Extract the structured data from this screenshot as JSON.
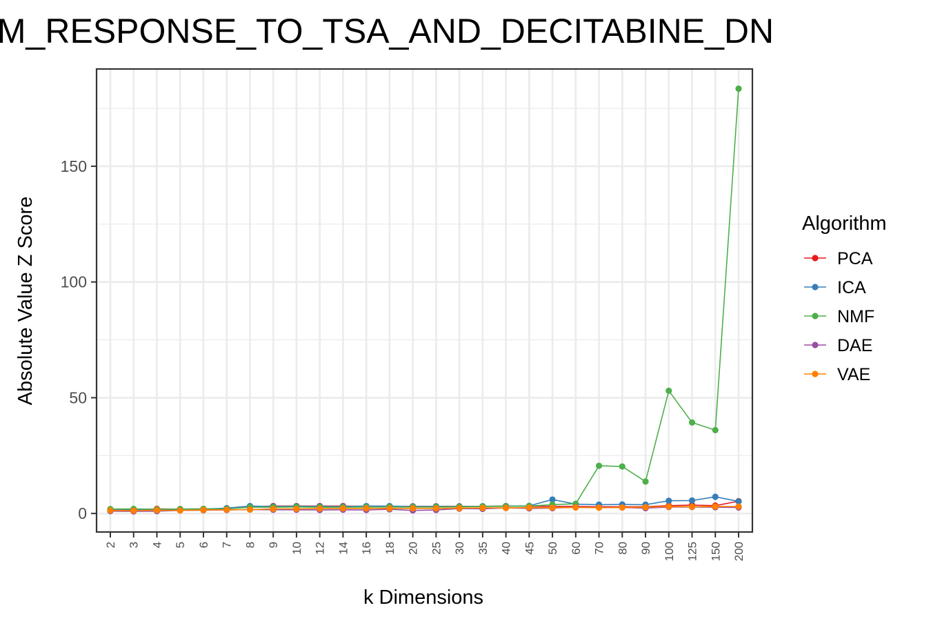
{
  "chart_data": {
    "type": "line",
    "title": "IM_RESPONSE_TO_TSA_AND_DECITABINE_DN",
    "xlabel": "k Dimensions",
    "ylabel": "Absolute Value Z Score",
    "categories": [
      "2",
      "3",
      "4",
      "5",
      "6",
      "7",
      "8",
      "9",
      "10",
      "12",
      "14",
      "16",
      "18",
      "20",
      "25",
      "30",
      "35",
      "40",
      "45",
      "50",
      "60",
      "70",
      "80",
      "90",
      "100",
      "125",
      "150",
      "200"
    ],
    "ylim": [
      -8,
      192
    ],
    "yticks": [
      0,
      50,
      100,
      150
    ],
    "grid": true,
    "legend": {
      "title": "Algorithm",
      "position": "right"
    },
    "series": [
      {
        "name": "PCA",
        "color": "#E41A1C",
        "values": [
          1.5,
          1.6,
          2.0,
          1.9,
          2.0,
          2.0,
          2.9,
          3.2,
          3.2,
          3.2,
          3.2,
          3.1,
          3.1,
          3.1,
          3.1,
          3.1,
          3.1,
          3.2,
          3.1,
          3.1,
          3.0,
          2.9,
          2.9,
          2.9,
          3.4,
          3.6,
          3.4,
          5.3
        ]
      },
      {
        "name": "ICA",
        "color": "#377EB8",
        "values": [
          1.8,
          1.7,
          1.7,
          1.8,
          1.9,
          2.3,
          3.2,
          3.0,
          3.1,
          3.0,
          3.0,
          3.2,
          3.2,
          3.0,
          3.0,
          3.0,
          3.1,
          3.2,
          3.3,
          6.0,
          4.0,
          3.8,
          3.9,
          3.8,
          5.5,
          5.6,
          7.2,
          5.2
        ]
      },
      {
        "name": "NMF",
        "color": "#4DAF4A",
        "values": [
          1.9,
          2.0,
          1.8,
          1.9,
          2.0,
          2.0,
          2.7,
          2.7,
          2.8,
          2.7,
          2.7,
          2.8,
          2.8,
          2.8,
          2.8,
          2.9,
          3.0,
          3.1,
          3.2,
          3.8,
          4.2,
          20.6,
          20.3,
          13.8,
          53.0,
          39.3,
          36.0,
          183.5
        ]
      },
      {
        "name": "DAE",
        "color": "#984EA3",
        "values": [
          1.0,
          0.9,
          1.0,
          1.3,
          1.4,
          1.5,
          1.7,
          1.6,
          1.6,
          1.5,
          1.6,
          1.5,
          1.8,
          1.3,
          1.5,
          2.1,
          2.0,
          2.4,
          2.2,
          2.3,
          2.7,
          2.6,
          2.6,
          2.3,
          2.8,
          2.8,
          2.7,
          2.6
        ]
      },
      {
        "name": "VAE",
        "color": "#FF7F00",
        "values": [
          1.3,
          1.2,
          1.4,
          1.3,
          1.5,
          1.6,
          1.7,
          2.0,
          2.0,
          2.1,
          2.2,
          2.2,
          2.2,
          2.2,
          2.2,
          2.3,
          2.4,
          2.4,
          2.5,
          2.5,
          2.6,
          2.5,
          2.6,
          2.7,
          3.0,
          2.9,
          3.0,
          3.0
        ]
      }
    ]
  }
}
